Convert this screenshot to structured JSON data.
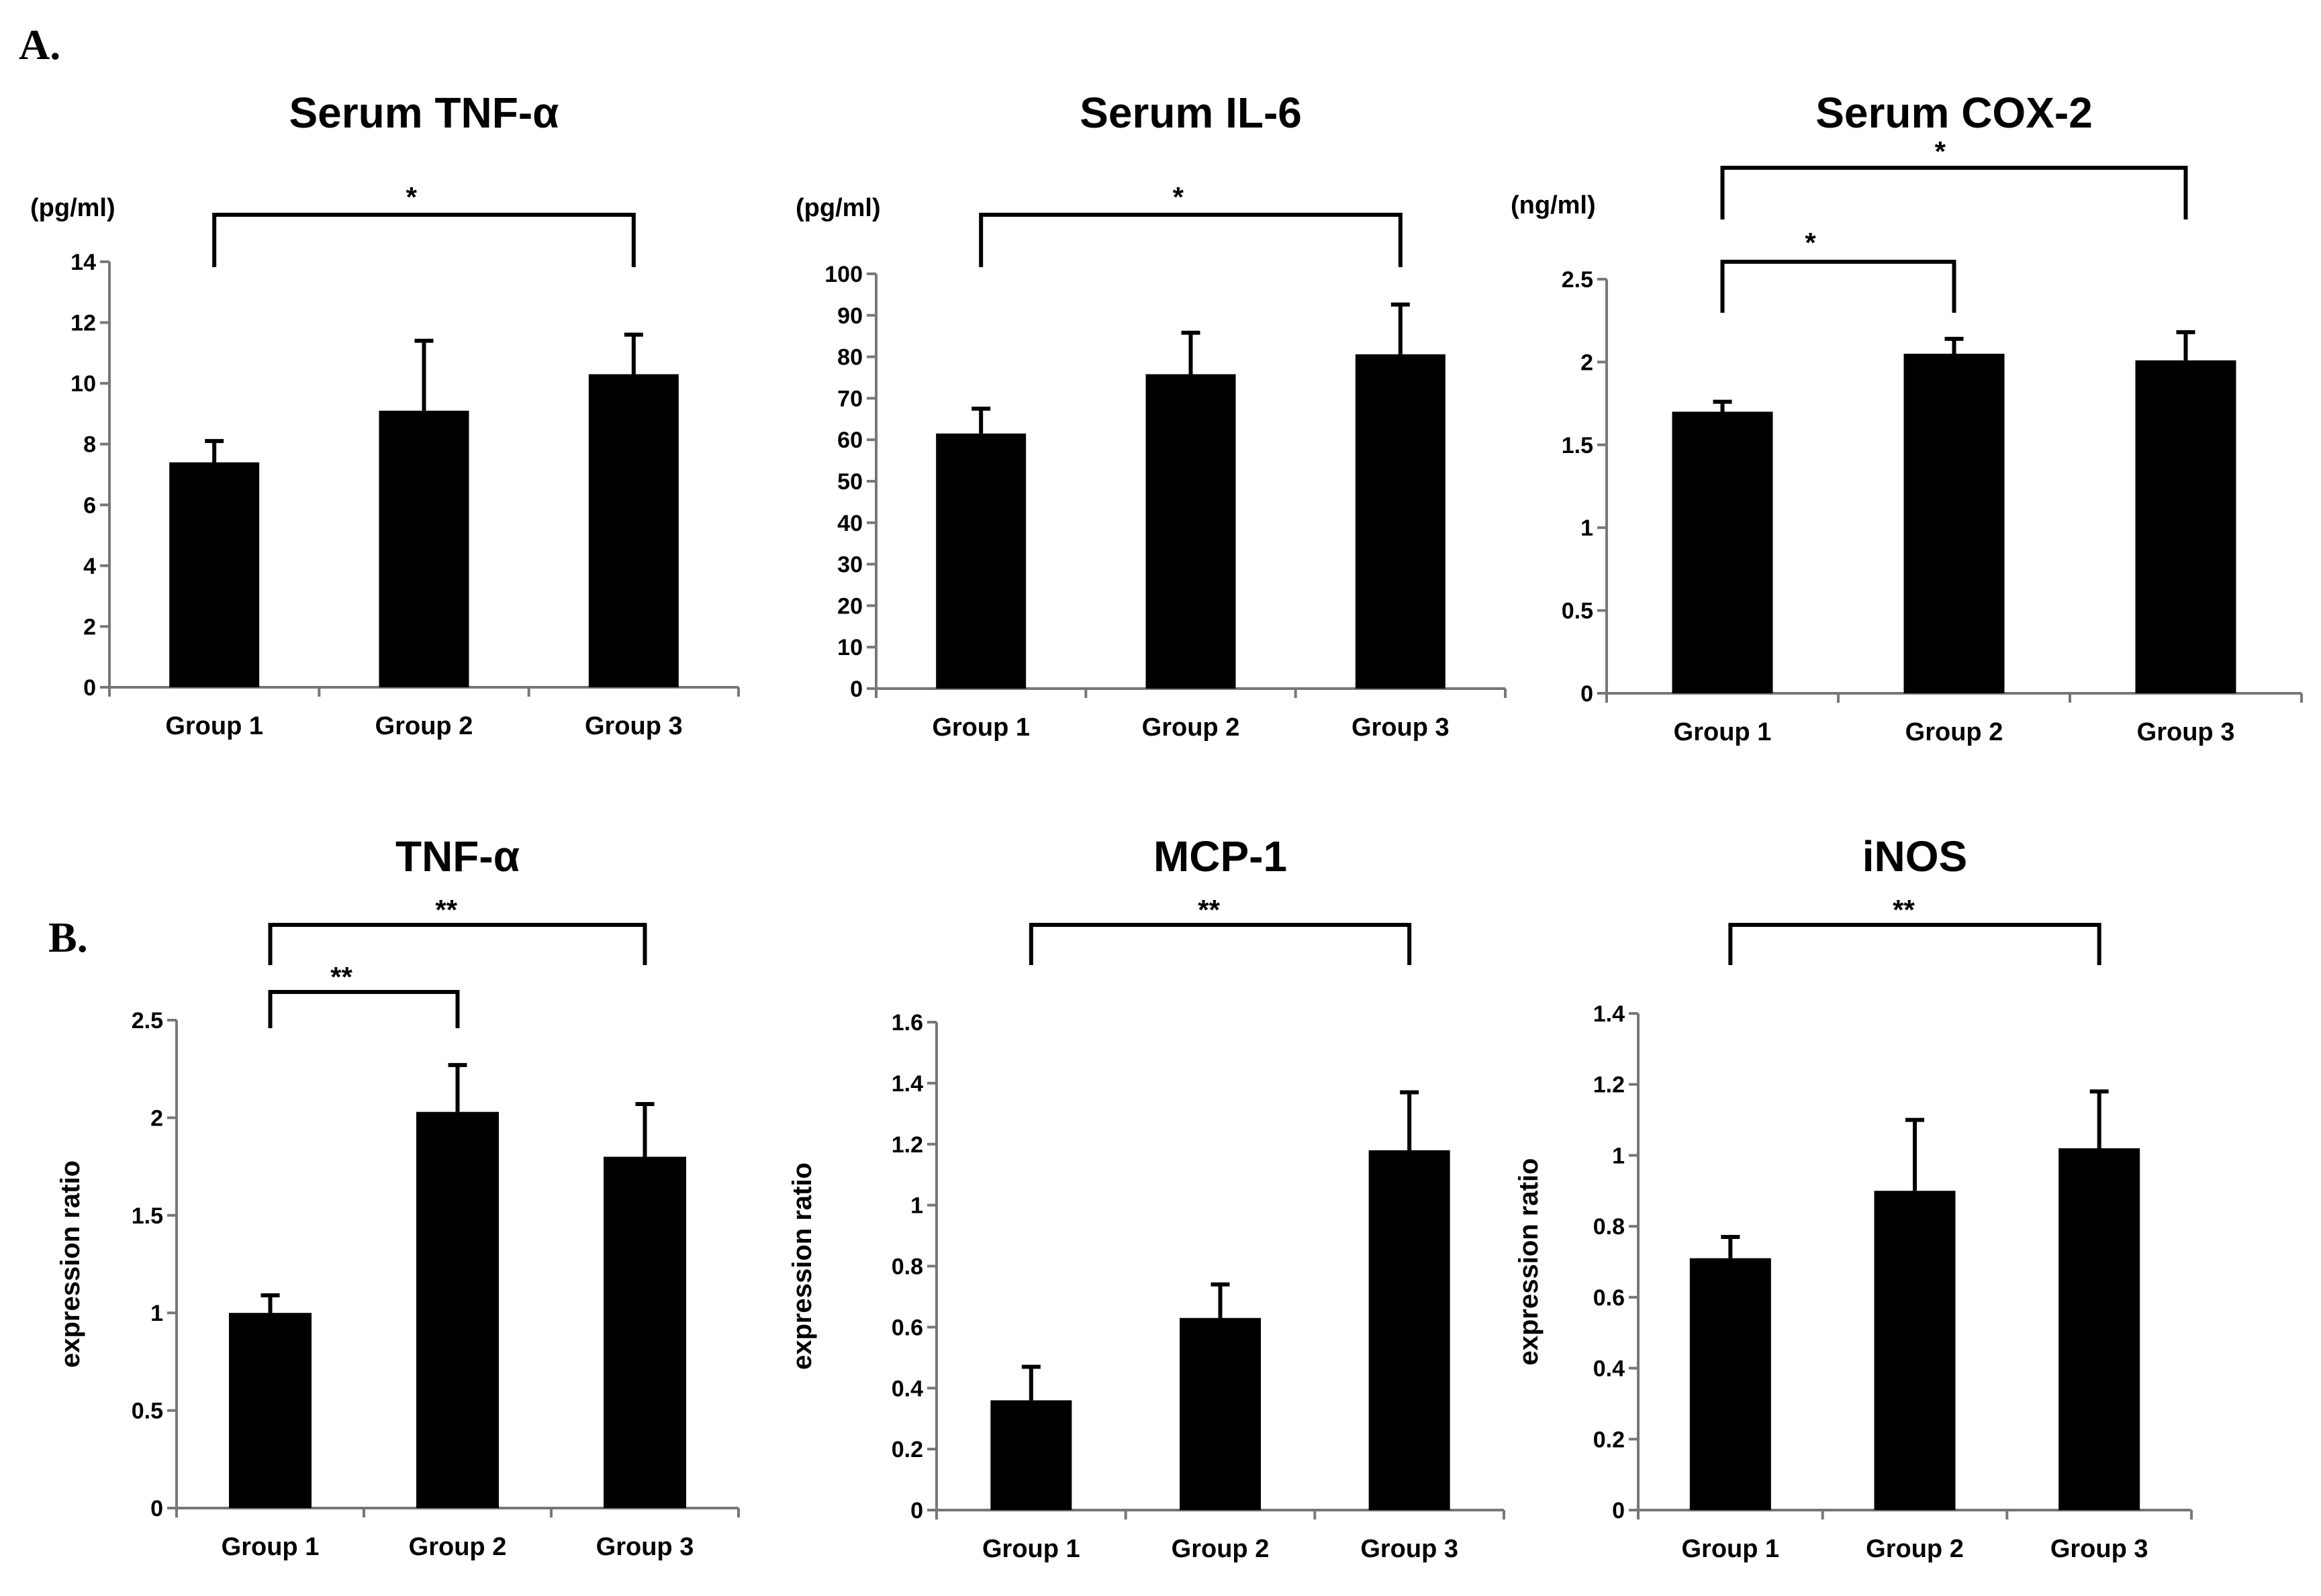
{
  "panel_labels": [
    "A.",
    "B."
  ],
  "chart_data": [
    {
      "type": "bar",
      "title": "Serum TNF-α",
      "ylabel": "(pg/ml)",
      "xlabel": "",
      "categories": [
        "Group 1",
        "Group 2",
        "Group 3"
      ],
      "values": [
        7.4,
        9.1,
        10.3
      ],
      "errors": [
        0.7,
        2.3,
        1.3
      ],
      "ylim": [
        0,
        14
      ],
      "yticks": [
        "0",
        "2",
        "4",
        "6",
        "8",
        "10",
        "12",
        "14"
      ],
      "ytick_values": [
        0,
        2,
        4,
        6,
        8,
        10,
        12,
        14
      ],
      "significance": [
        {
          "from": 0,
          "to": 2,
          "label": "*"
        }
      ],
      "bar_color": "#000000"
    },
    {
      "type": "bar",
      "title": "Serum IL-6",
      "ylabel": "(pg/ml)",
      "xlabel": "",
      "categories": [
        "Group 1",
        "Group 2",
        "Group 3"
      ],
      "values": [
        61.5,
        75.8,
        80.6
      ],
      "errors": [
        6,
        10,
        12
      ],
      "ylim": [
        0,
        100
      ],
      "yticks": [
        "0",
        "10",
        "20",
        "30",
        "40",
        "50",
        "60",
        "70",
        "80",
        "90",
        "100"
      ],
      "ytick_values": [
        0,
        10,
        20,
        30,
        40,
        50,
        60,
        70,
        80,
        90,
        100
      ],
      "significance": [
        {
          "from": 0,
          "to": 2,
          "label": "*"
        }
      ],
      "bar_color": "#000000"
    },
    {
      "type": "bar",
      "title": "Serum COX-2",
      "ylabel": "(ng/ml)",
      "xlabel": "",
      "categories": [
        "Group 1",
        "Group 2",
        "Group 3"
      ],
      "values": [
        1.7,
        2.05,
        2.01
      ],
      "errors": [
        0.06,
        0.09,
        0.17
      ],
      "ylim": [
        0,
        2.5
      ],
      "yticks": [
        "0",
        "0.5",
        "1",
        "1.5",
        "2",
        "2.5"
      ],
      "ytick_values": [
        0,
        0.5,
        1,
        1.5,
        2,
        2.5
      ],
      "significance": [
        {
          "from": 0,
          "to": 2,
          "label": "*"
        },
        {
          "from": 0,
          "to": 1,
          "label": "*"
        }
      ],
      "bar_color": "#000000"
    },
    {
      "type": "bar",
      "title": "TNF-α",
      "ylabel": "expression ratio",
      "xlabel": "",
      "categories": [
        "Group 1",
        "Group 2",
        "Group 3"
      ],
      "values": [
        1.0,
        2.03,
        1.8
      ],
      "errors": [
        0.09,
        0.24,
        0.27
      ],
      "ylim": [
        0,
        2.5
      ],
      "yticks": [
        "0",
        "0.5",
        "1",
        "1.5",
        "2",
        "2.5"
      ],
      "ytick_values": [
        0,
        0.5,
        1,
        1.5,
        2,
        2.5
      ],
      "significance": [
        {
          "from": 0,
          "to": 2,
          "label": "**"
        },
        {
          "from": 0,
          "to": 1,
          "label": "**"
        }
      ],
      "bar_color": "#000000"
    },
    {
      "type": "bar",
      "title": "MCP-1",
      "ylabel": "expression ratio",
      "xlabel": "",
      "categories": [
        "Group 1",
        "Group 2",
        "Group 3"
      ],
      "values": [
        0.36,
        0.63,
        1.18
      ],
      "errors": [
        0.11,
        0.11,
        0.19
      ],
      "ylim": [
        0,
        1.6
      ],
      "yticks": [
        "0",
        "0.2",
        "0.4",
        "0.6",
        "0.8",
        "1",
        "1.2",
        "1.4",
        "1.6"
      ],
      "ytick_values": [
        0,
        0.2,
        0.4,
        0.6,
        0.8,
        1,
        1.2,
        1.4,
        1.6
      ],
      "significance": [
        {
          "from": 0,
          "to": 2,
          "label": "**"
        }
      ],
      "bar_color": "#000000"
    },
    {
      "type": "bar",
      "title": "iNOS",
      "ylabel": "expression ratio",
      "xlabel": "",
      "categories": [
        "Group 1",
        "Group 2",
        "Group 3"
      ],
      "values": [
        0.71,
        0.9,
        1.02
      ],
      "errors": [
        0.06,
        0.2,
        0.16
      ],
      "ylim": [
        0,
        1.4
      ],
      "yticks": [
        "0",
        "0.2",
        "0.4",
        "0.6",
        "0.8",
        "1",
        "1.2",
        "1.4"
      ],
      "ytick_values": [
        0,
        0.2,
        0.4,
        0.6,
        0.8,
        1,
        1.2,
        1.4
      ],
      "significance": [
        {
          "from": 0,
          "to": 2,
          "label": "**"
        }
      ],
      "bar_color": "#000000"
    }
  ]
}
